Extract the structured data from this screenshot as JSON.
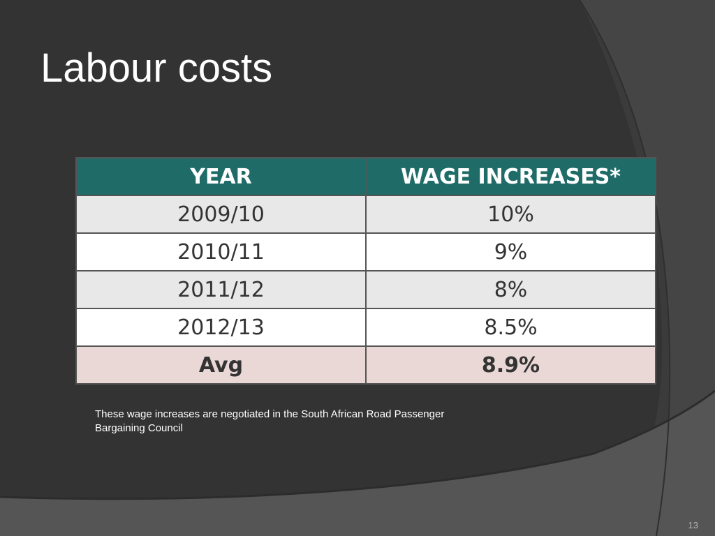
{
  "slide": {
    "title": "Labour costs",
    "note": "These wage increases are negotiated in the South African Road Passenger Bargaining Council",
    "slide_number": "13"
  },
  "table": {
    "headers": [
      "YEAR",
      "WAGE INCREASES*"
    ],
    "rows": [
      {
        "year": "2009/10",
        "increase": "10%"
      },
      {
        "year": "2010/11",
        "increase": "9%"
      },
      {
        "year": "2011/12",
        "increase": "8%"
      },
      {
        "year": "2012/13",
        "increase": "8.5%"
      },
      {
        "year": "Avg",
        "increase": "8.9%"
      }
    ]
  },
  "colors": {
    "background": "#3b3b3b",
    "header_fill": "#1e6b68",
    "row_light": "#e8e8e9",
    "row_white": "#ffffff",
    "avg_row": "#ead8d6",
    "text_dark": "#333333",
    "text_light": "#ffffff"
  }
}
